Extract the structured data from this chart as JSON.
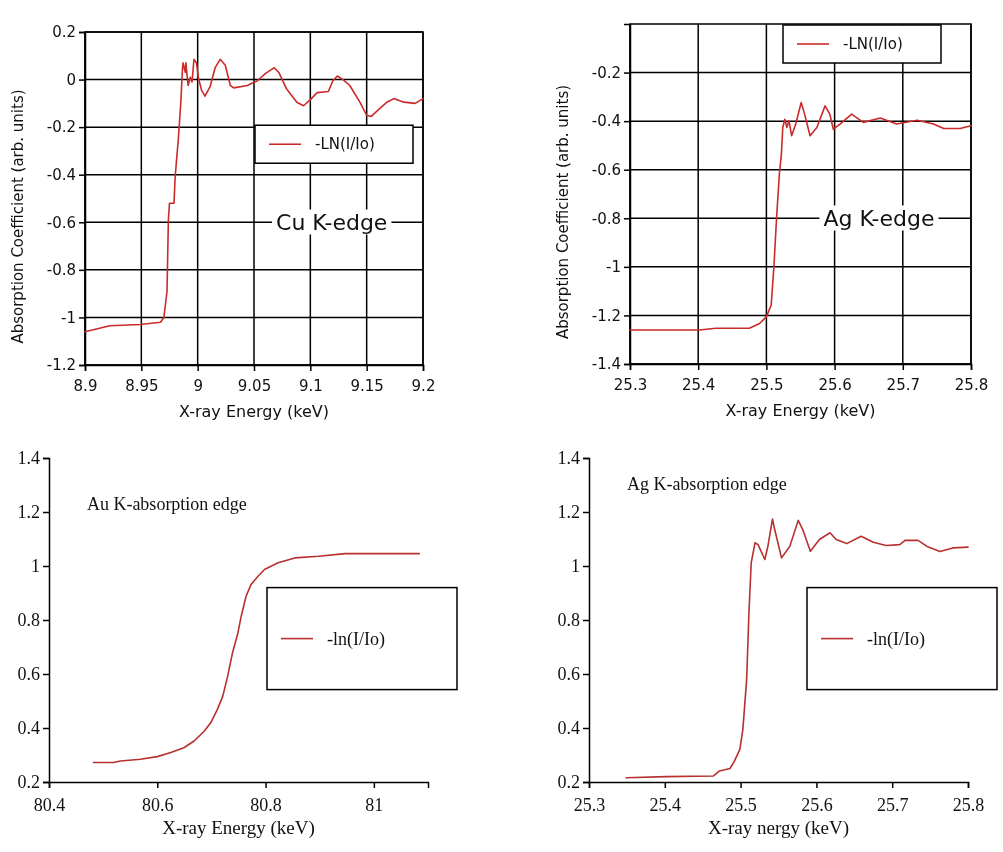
{
  "chart_data": [
    {
      "type": "line",
      "xlabel": "X-ray Energy (keV)",
      "ylabel": "Absorption Coefficient (arb. units)",
      "xlim": [
        8.9,
        9.2
      ],
      "xticks": [
        8.9,
        8.95,
        9,
        9.05,
        9.1,
        9.15,
        9.2
      ],
      "ylim": [
        -1.2,
        0.2
      ],
      "yticks": [
        -1.2,
        -1,
        -0.8,
        -0.6,
        -0.4,
        -0.2,
        0,
        0.2
      ],
      "grid": true,
      "legend": "right",
      "annotations": [
        "Cu K-edge"
      ],
      "x": [
        8.9,
        8.922,
        8.949,
        8.967,
        8.97,
        8.9728,
        8.974,
        8.975,
        8.979,
        8.98,
        8.983,
        8.985,
        8.9865,
        8.987,
        8.989,
        8.9895,
        8.9915,
        8.9935,
        8.995,
        8.9967,
        8.999,
        9.0005,
        9.0035,
        9.0065,
        9.011,
        9.0155,
        9.02,
        9.0245,
        9.029,
        9.032,
        9.044,
        9.053,
        9.06,
        9.068,
        9.072,
        9.079,
        9.088,
        9.094,
        9.101,
        9.106,
        9.116,
        9.12,
        9.124,
        9.129,
        9.135,
        9.144,
        9.15,
        9.154,
        9.162,
        9.168,
        9.174,
        9.183,
        9.193,
        9.2
      ],
      "series": [
        {
          "name": "-LN(I/Io)",
          "color": "#cc2a2a",
          "values": [
            -1.06,
            -1.035,
            -1.03,
            -1.02,
            -1,
            -0.89,
            -0.59,
            -0.52,
            -0.52,
            -0.41,
            -0.24,
            -0.1,
            0.045,
            0.07,
            0.03,
            0.07,
            -0.025,
            0.01,
            -0.01,
            0.085,
            0.07,
            0.01,
            -0.045,
            -0.07,
            -0.03,
            0.05,
            0.085,
            0.06,
            -0.025,
            -0.035,
            -0.025,
            -0.005,
            0.025,
            0.05,
            0.03,
            -0.04,
            -0.095,
            -0.11,
            -0.08,
            -0.055,
            -0.05,
            -0.005,
            0.015,
            0,
            -0.025,
            -0.095,
            -0.15,
            -0.155,
            -0.12,
            -0.095,
            -0.08,
            -0.095,
            -0.1,
            -0.08
          ]
        }
      ]
    },
    {
      "type": "line",
      "xlabel": "X-ray Energy (keV)",
      "ylabel": "Absorption Coefficient (arb. units)",
      "xlim": [
        25.3,
        25.8
      ],
      "xticks": [
        25.3,
        25.4,
        25.5,
        25.6,
        25.7,
        25.8
      ],
      "ylim": [
        -1.4,
        0
      ],
      "yticks": [
        -1.4,
        -1.2,
        -1,
        -0.8,
        -0.6,
        -0.4,
        -0.2
      ],
      "grid": true,
      "legend": "top right",
      "annotations": [
        "Ag K-edge"
      ],
      "x": [
        25.3,
        25.402,
        25.426,
        25.475,
        25.49,
        25.5,
        25.507,
        25.511,
        25.515,
        25.519,
        25.522,
        25.524,
        25.527,
        25.53,
        25.533,
        25.537,
        25.543,
        25.551,
        25.556,
        25.564,
        25.574,
        25.586,
        25.593,
        25.598,
        25.608,
        25.625,
        25.642,
        25.667,
        25.691,
        25.721,
        25.745,
        25.76,
        25.784,
        25.8
      ],
      "series": [
        {
          "name": "-LN(I/Io)",
          "color": "#cc2a2a",
          "values": [
            -1.26,
            -1.26,
            -1.253,
            -1.253,
            -1.233,
            -1.205,
            -1.158,
            -1,
            -0.795,
            -0.617,
            -0.535,
            -0.426,
            -0.392,
            -0.426,
            -0.398,
            -0.46,
            -0.412,
            -0.323,
            -0.371,
            -0.46,
            -0.426,
            -0.337,
            -0.371,
            -0.433,
            -0.412,
            -0.371,
            -0.405,
            -0.387,
            -0.412,
            -0.396,
            -0.412,
            -0.43,
            -0.43,
            -0.419
          ]
        }
      ]
    },
    {
      "type": "line",
      "xlabel": "X-ray Energy (keV)",
      "xlim": [
        80.4,
        81.1
      ],
      "xticks": [
        80.4,
        80.6,
        80.8,
        81
      ],
      "ylim": [
        0.2,
        1.4
      ],
      "yticks": [
        0.2,
        0.4,
        0.6,
        0.8,
        1,
        1.2,
        1.4
      ],
      "legend": "right",
      "annotations": [
        "Au K-absorption edge"
      ],
      "x": [
        80.482,
        80.519,
        80.532,
        80.569,
        80.6,
        80.625,
        80.649,
        80.668,
        80.687,
        80.699,
        80.711,
        80.721,
        80.73,
        80.739,
        80.749,
        80.755,
        80.764,
        80.773,
        80.786,
        80.798,
        80.823,
        80.854,
        80.898,
        80.947,
        81.084
      ],
      "series": [
        {
          "name": "-ln(I/Io)",
          "color": "#b83030",
          "values": [
            0.272,
            0.272,
            0.278,
            0.284,
            0.294,
            0.309,
            0.327,
            0.352,
            0.389,
            0.42,
            0.469,
            0.518,
            0.592,
            0.679,
            0.753,
            0.814,
            0.888,
            0.931,
            0.962,
            0.987,
            1.012,
            1.03,
            1.036,
            1.046,
            1.046
          ]
        }
      ]
    },
    {
      "type": "line",
      "xlabel": "X-ray nergy (keV)",
      "xlim": [
        25.3,
        25.8
      ],
      "xticks": [
        25.3,
        25.4,
        25.5,
        25.6,
        25.7,
        25.8
      ],
      "ylim": [
        0.2,
        1.4
      ],
      "yticks": [
        0.2,
        0.4,
        0.6,
        0.8,
        1,
        1.2,
        1.4
      ],
      "legend": "right",
      "annotations": [
        "Ag K-absorption edge"
      ],
      "x": [
        25.349,
        25.402,
        25.464,
        25.472,
        25.486,
        25.492,
        25.499,
        25.503,
        25.508,
        25.511,
        25.514,
        25.519,
        25.523,
        25.532,
        25.536,
        25.542,
        25.545,
        25.554,
        25.565,
        25.576,
        25.582,
        25.592,
        25.604,
        25.618,
        25.626,
        25.64,
        25.659,
        25.675,
        25.692,
        25.71,
        25.717,
        25.734,
        25.747,
        25.763,
        25.78,
        25.8
      ],
      "series": [
        {
          "name": "-ln(I/Io)",
          "color": "#b83030",
          "values": [
            0.216,
            0.22,
            0.222,
            0.241,
            0.25,
            0.278,
            0.321,
            0.395,
            0.58,
            0.827,
            1.012,
            1.086,
            1.079,
            1.024,
            1.073,
            1.174,
            1.135,
            1.03,
            1.073,
            1.169,
            1.135,
            1.055,
            1.098,
            1.123,
            1.098,
            1.083,
            1.11,
            1.088,
            1.076,
            1.079,
            1.095,
            1.095,
            1.071,
            1.054,
            1.067,
            1.07
          ]
        }
      ]
    }
  ]
}
